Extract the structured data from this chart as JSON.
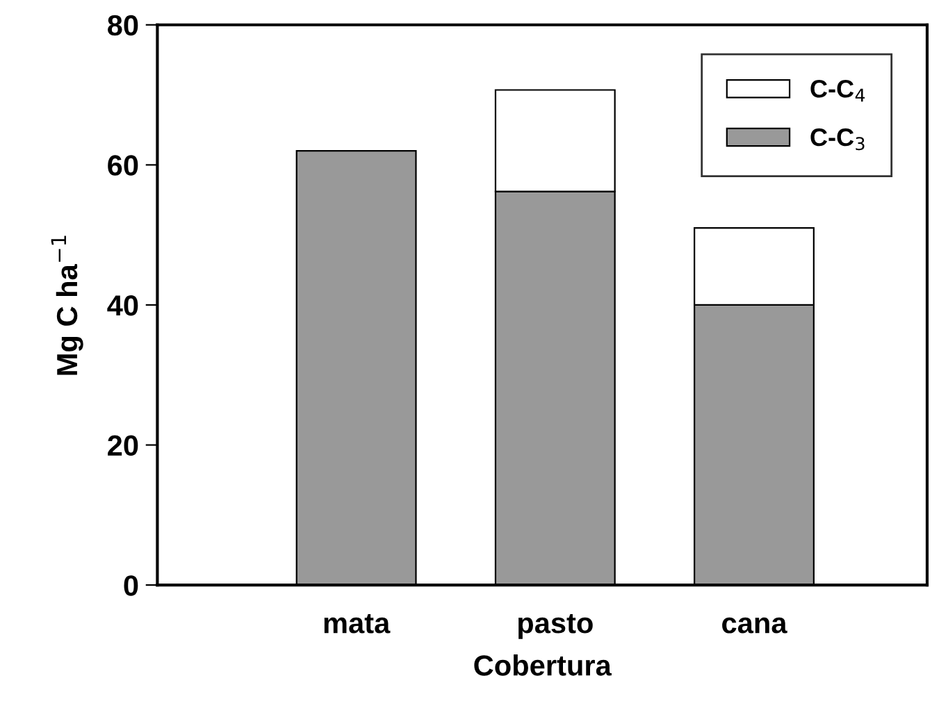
{
  "chart_data": {
    "type": "bar",
    "stacked": true,
    "xlabel": "Cobertura",
    "ylabel": "Mg C ha$^{−1}$",
    "categories": [
      "mata",
      "pasto",
      "cana"
    ],
    "series": [
      {
        "name": "C-C$_{3}$",
        "color": "#999999",
        "values": [
          62,
          56.2,
          40
        ]
      },
      {
        "name": "C-C$_{4}$",
        "color": "#ffffff",
        "values": [
          null,
          14.5,
          11
        ]
      }
    ],
    "ylim": [
      0,
      80
    ],
    "yticks": [
      0,
      20,
      40,
      60,
      80
    ],
    "grid": false,
    "legend": "top right"
  }
}
